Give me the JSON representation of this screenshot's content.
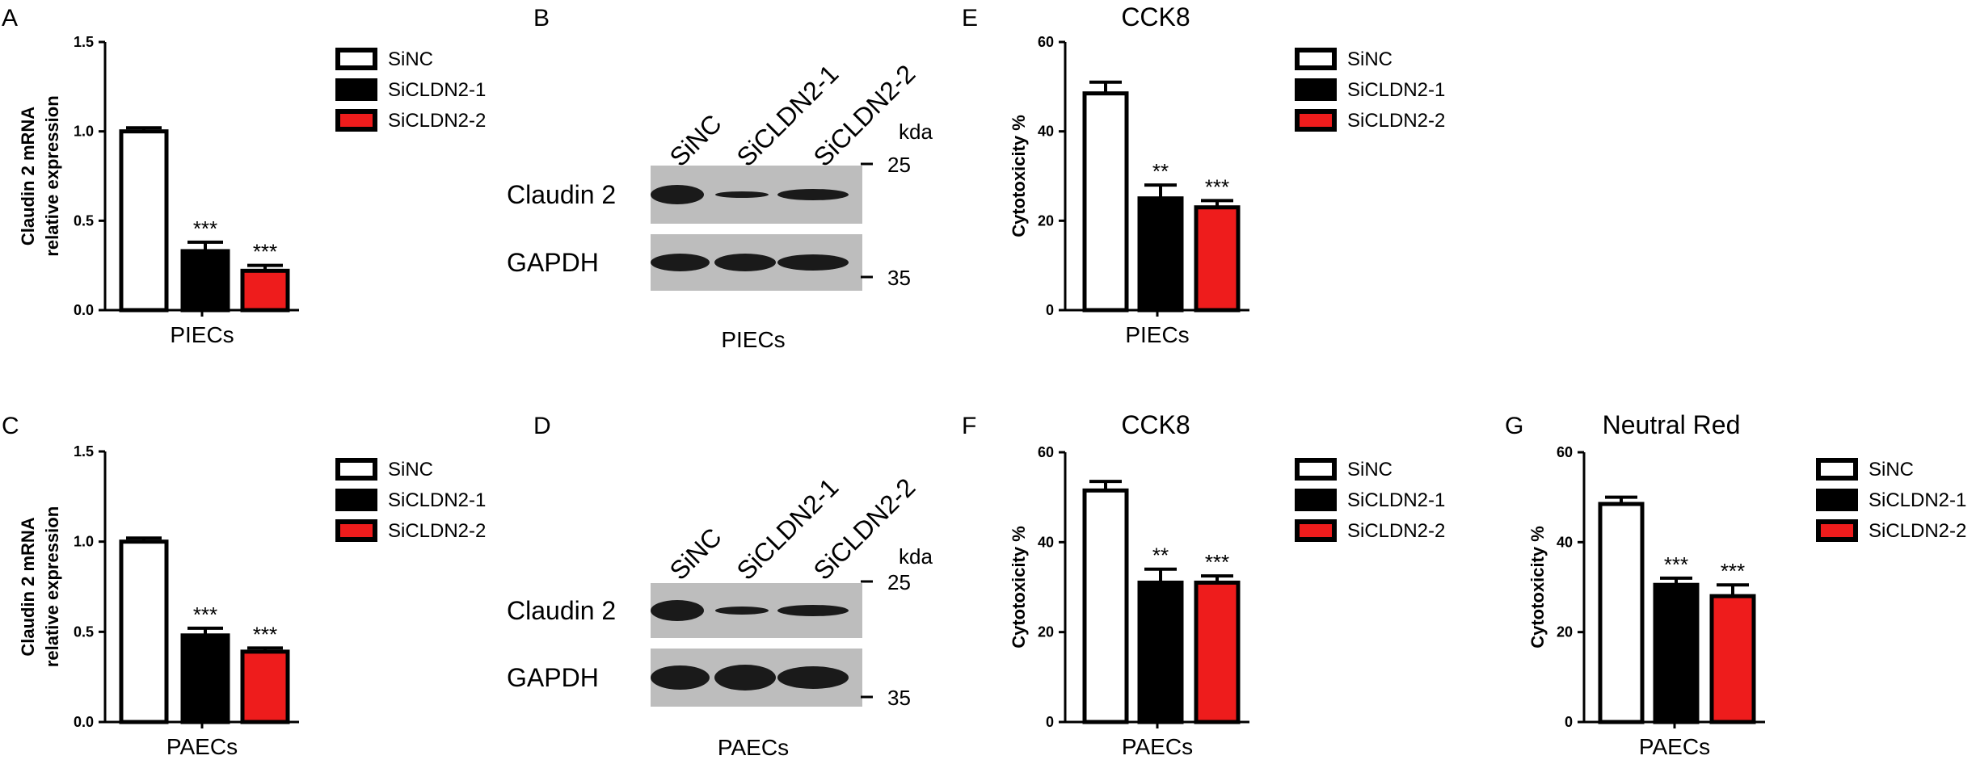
{
  "colors": {
    "siNC": "#ffffff",
    "siCLDN2_1": "#000000",
    "siCLDN2_2": "#ee1c1c",
    "blot_bg": "#bdbdbd",
    "band": "#1a1a1a"
  },
  "legend": [
    "SiNC",
    "SiCLDN2-1",
    "SiCLDN2-2"
  ],
  "chart_data": [
    {
      "panel": "A",
      "type": "bar",
      "title": "",
      "ylabel": [
        "Claudin 2 mRNA",
        "relative expression"
      ],
      "xlabel": "PIECs",
      "ylim": [
        0,
        1.5
      ],
      "yticks": [
        0.0,
        0.5,
        1.0,
        1.5
      ],
      "tick_labels": [
        "0.0",
        "0.5",
        "1.0",
        "1.5"
      ],
      "categories": [
        "SiNC",
        "SiCLDN2-1",
        "SiCLDN2-2"
      ],
      "values": [
        1.0,
        0.33,
        0.22
      ],
      "errors": [
        0.02,
        0.05,
        0.03
      ],
      "significance": [
        "",
        "***",
        "***"
      ]
    },
    {
      "panel": "C",
      "type": "bar",
      "title": "",
      "ylabel": [
        "Claudin 2 mRNA",
        "relative expression"
      ],
      "xlabel": "PAECs",
      "ylim": [
        0,
        1.5
      ],
      "yticks": [
        0.0,
        0.5,
        1.0,
        1.5
      ],
      "tick_labels": [
        "0.0",
        "0.5",
        "1.0",
        "1.5"
      ],
      "categories": [
        "SiNC",
        "SiCLDN2-1",
        "SiCLDN2-2"
      ],
      "values": [
        1.0,
        0.48,
        0.39
      ],
      "errors": [
        0.02,
        0.04,
        0.02
      ],
      "significance": [
        "",
        "***",
        "***"
      ]
    },
    {
      "panel": "E",
      "type": "bar",
      "title": "CCK8",
      "ylabel": [
        "Cytotoxicity %"
      ],
      "xlabel": "PIECs",
      "ylim": [
        0,
        60
      ],
      "yticks": [
        0,
        20,
        40,
        60
      ],
      "tick_labels": [
        "0",
        "20",
        "40",
        "60"
      ],
      "categories": [
        "SiNC",
        "SiCLDN2-1",
        "SiCLDN2-2"
      ],
      "values": [
        48.5,
        25,
        23
      ],
      "errors": [
        2.5,
        3,
        1.5
      ],
      "significance": [
        "",
        "**",
        "***"
      ]
    },
    {
      "panel": "F",
      "type": "bar",
      "title": "CCK8",
      "ylabel": [
        "Cytotoxicity %"
      ],
      "xlabel": "PAECs",
      "ylim": [
        0,
        60
      ],
      "yticks": [
        0,
        20,
        40,
        60
      ],
      "tick_labels": [
        "0",
        "20",
        "40",
        "60"
      ],
      "categories": [
        "SiNC",
        "SiCLDN2-1",
        "SiCLDN2-2"
      ],
      "values": [
        51.5,
        31,
        31
      ],
      "errors": [
        2,
        3,
        1.5
      ],
      "significance": [
        "",
        "**",
        "***"
      ]
    },
    {
      "panel": "G",
      "type": "bar",
      "title": "Neutral Red",
      "ylabel": [
        "Cytotoxicity %"
      ],
      "xlabel": "PAECs",
      "ylim": [
        0,
        60
      ],
      "yticks": [
        0,
        20,
        40,
        60
      ],
      "tick_labels": [
        "0",
        "20",
        "40",
        "60"
      ],
      "categories": [
        "SiNC",
        "SiCLDN2-1",
        "SiCLDN2-2"
      ],
      "values": [
        48.5,
        30.5,
        28
      ],
      "errors": [
        1.5,
        1.5,
        2.5
      ],
      "significance": [
        "",
        "***",
        "***"
      ]
    }
  ],
  "blots": [
    {
      "panel": "B",
      "xlabel": "PIECs",
      "lanes": [
        "SiNC",
        "SiCLDN2-1",
        "SiCLDN2-2"
      ],
      "rows": [
        "Claudin 2",
        "GAPDH"
      ],
      "kda_label": "kda",
      "markers": [
        "25",
        "35"
      ]
    },
    {
      "panel": "D",
      "xlabel": "PAECs",
      "lanes": [
        "SiNC",
        "SiCLDN2-1",
        "SiCLDN2-2"
      ],
      "rows": [
        "Claudin 2",
        "GAPDH"
      ],
      "kda_label": "kda",
      "markers": [
        "25",
        "35"
      ]
    }
  ]
}
